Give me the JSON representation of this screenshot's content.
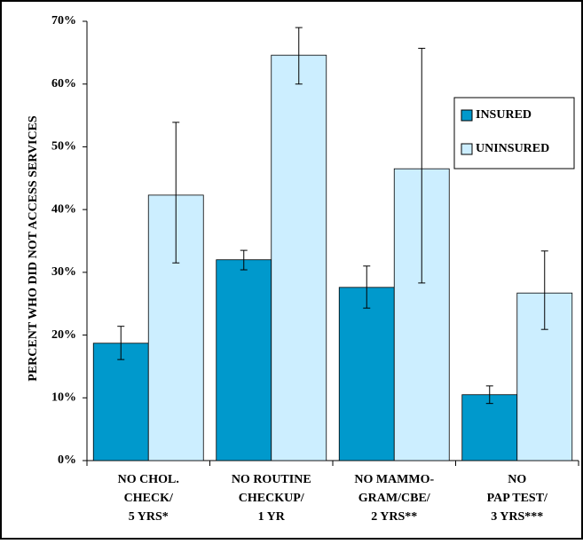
{
  "chart_data": {
    "type": "bar",
    "y_label": "PERCENT WHO DID NOT ACCESS SERVICES",
    "categories": [
      [
        "NO CHOL.",
        "CHECK/",
        "5 YRS*"
      ],
      [
        "NO ROUTINE",
        "CHECKUP/",
        "1 YR"
      ],
      [
        "NO MAMMO-",
        "GRAM/CBE/",
        "2 YRS**"
      ],
      [
        "NO",
        "PAP TEST/",
        "3 YRS***"
      ]
    ],
    "series": [
      {
        "name": "INSURED",
        "color": "#0099cc",
        "values": [
          18.7,
          32.0,
          27.6,
          10.5
        ],
        "ci": [
          [
            16.1,
            21.4
          ],
          [
            30.4,
            33.5
          ],
          [
            24.3,
            31.0
          ],
          [
            9.1,
            11.9
          ]
        ]
      },
      {
        "name": "UNINSURED",
        "color": "#cceeff",
        "values": [
          42.3,
          64.6,
          46.5,
          26.7
        ],
        "ci": [
          [
            31.5,
            53.9
          ],
          [
            60.0,
            69.0
          ],
          [
            28.3,
            65.7
          ],
          [
            20.9,
            33.4
          ]
        ]
      }
    ],
    "ylim": [
      0,
      70
    ],
    "yticks": [
      {
        "value": 0,
        "label": "0%"
      },
      {
        "value": 10,
        "label": "10%"
      },
      {
        "value": 20,
        "label": "20%"
      },
      {
        "value": 30,
        "label": "30%"
      },
      {
        "value": 40,
        "label": "40%"
      },
      {
        "value": 50,
        "label": "50%"
      },
      {
        "value": 60,
        "label": "60%"
      },
      {
        "value": 70,
        "label": "70%"
      }
    ],
    "legend": "right"
  }
}
